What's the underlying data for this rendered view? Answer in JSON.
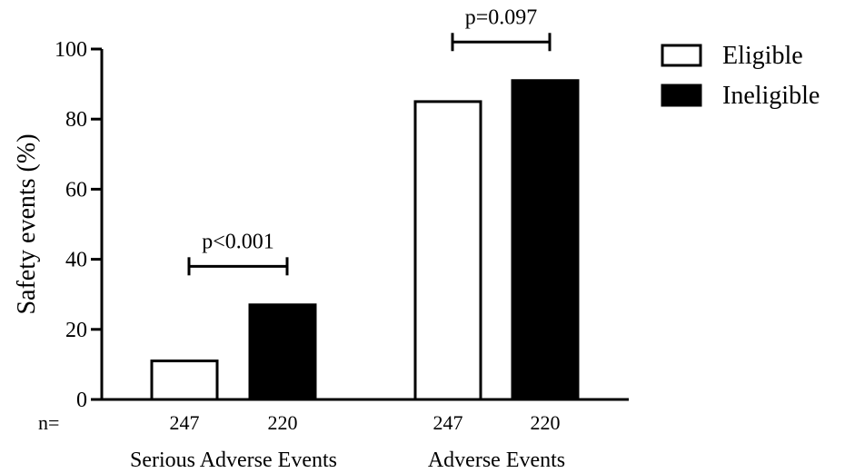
{
  "chart_data": {
    "type": "bar",
    "ylabel": "Safety events (%)",
    "ylim": [
      0,
      100
    ],
    "yticks": [
      "0",
      "20",
      "40",
      "60",
      "80",
      "100"
    ],
    "n_label": "n=",
    "series": [
      {
        "name": "Eligible",
        "color": "#ffffff"
      },
      {
        "name": "Ineligible",
        "color": "#000000"
      }
    ],
    "groups": [
      {
        "label": "Serious Adverse Events",
        "values": [
          11,
          27
        ],
        "n": [
          "247",
          "220"
        ],
        "p_value": "p<0.001",
        "bracket_level": 38
      },
      {
        "label": "Adverse Events",
        "values": [
          85,
          91
        ],
        "n": [
          "247",
          "220"
        ],
        "p_value": "p=0.097",
        "bracket_level": 102
      }
    ],
    "legend": {
      "placement": "top-right",
      "items": [
        "Eligible",
        "Ineligible"
      ]
    },
    "grid": false
  }
}
